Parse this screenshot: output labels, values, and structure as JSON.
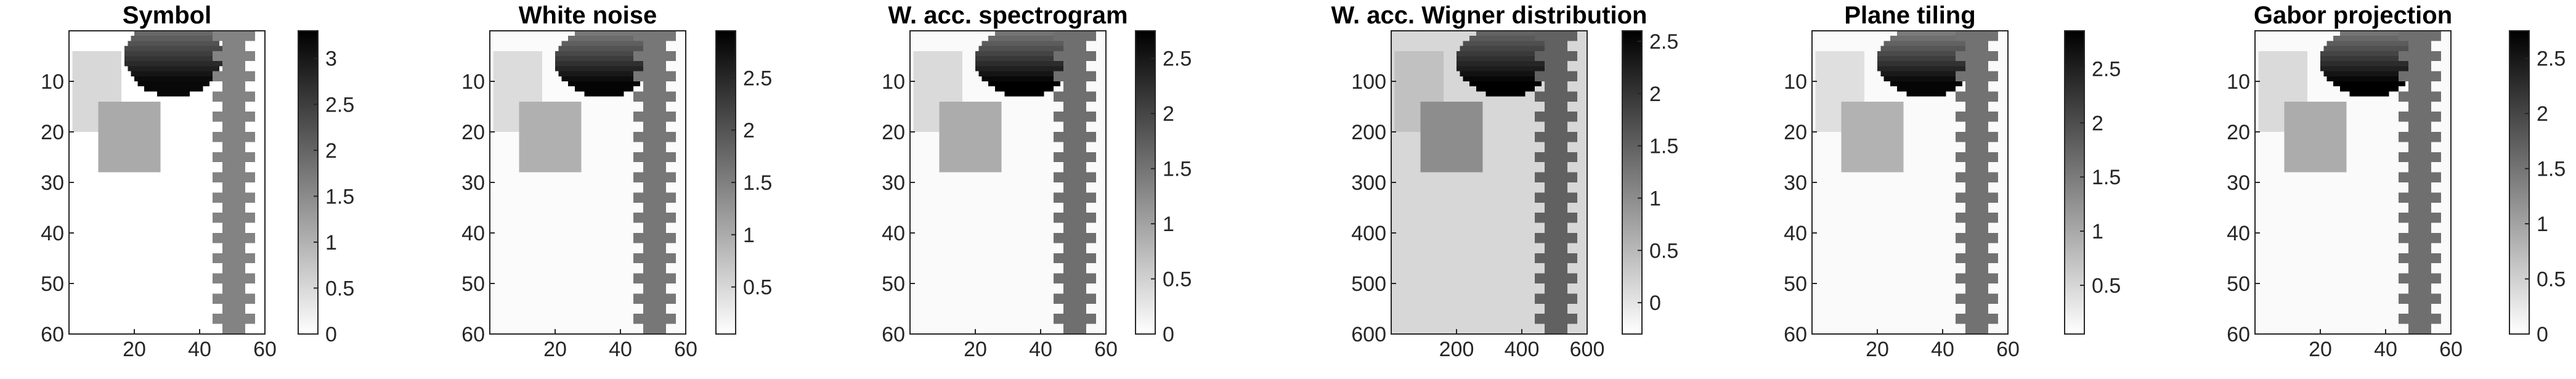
{
  "figure": {
    "background": "#ffffff",
    "axis_color": "#262626",
    "colormap": "gray-reversed"
  },
  "chart_data": [
    {
      "type": "heatmap",
      "title": "Symbol",
      "xlabel": "",
      "ylabel": "",
      "xlim": [
        0,
        60
      ],
      "ylim": [
        60,
        0
      ],
      "xticks": [
        "20",
        "40",
        "60"
      ],
      "yticks": [
        "10",
        "20",
        "30",
        "40",
        "50",
        "60"
      ],
      "grid": false,
      "colorbar": {
        "range": [
          0,
          3.3
        ],
        "ticks": [
          "0",
          "0.5",
          "1",
          "1.5",
          "2",
          "2.5",
          "3"
        ]
      },
      "features": {
        "background": 0,
        "ellipse": {
          "center": [
            32,
            5
          ],
          "radii": [
            15,
            8
          ],
          "max": 3.2,
          "min": 1.5
        },
        "square1": {
          "x": [
            1,
            16
          ],
          "y": [
            4,
            20
          ],
          "value": 0.5
        },
        "square2": {
          "x": [
            9,
            28
          ],
          "y": [
            14,
            28
          ],
          "value": 1.1
        },
        "strip": {
          "x": [
            47,
            54
          ],
          "teeth": 15,
          "value": 1.6
        }
      }
    },
    {
      "type": "heatmap",
      "title": "White noise",
      "xlabel": "",
      "ylabel": "",
      "xlim": [
        0,
        60
      ],
      "ylim": [
        60,
        0
      ],
      "xticks": [
        "20",
        "40",
        "60"
      ],
      "yticks": [
        "10",
        "20",
        "30",
        "40",
        "50",
        "60"
      ],
      "grid": false,
      "colorbar": {
        "range": [
          0.05,
          2.95
        ],
        "ticks": [
          "0.5",
          "1",
          "1.5",
          "2",
          "2.5"
        ]
      },
      "features": {
        "background": 0.1,
        "ellipse": {
          "center": [
            35,
            6
          ],
          "radii": [
            15,
            7
          ],
          "max": 2.9,
          "min": 1.4
        },
        "square1": {
          "x": [
            1,
            16
          ],
          "y": [
            4,
            20
          ],
          "value": 0.45
        },
        "square2": {
          "x": [
            9,
            28
          ],
          "y": [
            14,
            28
          ],
          "value": 0.95
        },
        "strip": {
          "x": [
            47,
            54
          ],
          "teeth": 15,
          "value": 1.6
        }
      }
    },
    {
      "type": "heatmap",
      "title": "W. acc. spectrogram",
      "xlabel": "",
      "ylabel": "",
      "xlim": [
        0,
        60
      ],
      "ylim": [
        60,
        0
      ],
      "xticks": [
        "20",
        "40",
        "60"
      ],
      "yticks": [
        "10",
        "20",
        "30",
        "40",
        "50",
        "60"
      ],
      "grid": false,
      "colorbar": {
        "range": [
          0,
          2.75
        ],
        "ticks": [
          "0",
          "0.5",
          "1",
          "1.5",
          "2",
          "2.5"
        ]
      },
      "features": {
        "background": 0.05,
        "ellipse": {
          "center": [
            35,
            6
          ],
          "radii": [
            15,
            7
          ],
          "max": 2.75,
          "min": 1.3
        },
        "square1": {
          "x": [
            1,
            16
          ],
          "y": [
            4,
            20
          ],
          "value": 0.4
        },
        "square2": {
          "x": [
            9,
            28
          ],
          "y": [
            14,
            28
          ],
          "value": 0.9
        },
        "strip": {
          "x": [
            47,
            54
          ],
          "teeth": 15,
          "value": 1.55
        }
      }
    },
    {
      "type": "heatmap",
      "title": "W. acc. Wigner distribution",
      "xlabel": "",
      "ylabel": "",
      "xlim": [
        0,
        600
      ],
      "ylim": [
        600,
        0
      ],
      "xticks": [
        "200",
        "400",
        "600"
      ],
      "yticks": [
        "100",
        "200",
        "300",
        "400",
        "500",
        "600"
      ],
      "grid": false,
      "colorbar": {
        "range": [
          -0.3,
          2.6
        ],
        "ticks": [
          "0",
          "0.5",
          "1",
          "1.5",
          "2",
          "2.5"
        ]
      },
      "features": {
        "background": 0.15,
        "ellipse": {
          "center": [
            350,
            60
          ],
          "radii": [
            150,
            70
          ],
          "max": 2.6,
          "min": 1.3
        },
        "square1": {
          "x": [
            10,
            160
          ],
          "y": [
            40,
            200
          ],
          "value": 0.4
        },
        "square2": {
          "x": [
            90,
            280
          ],
          "y": [
            140,
            280
          ],
          "value": 1.0
        },
        "strip": {
          "x": [
            470,
            540
          ],
          "teeth": 15,
          "value": 1.5
        }
      }
    },
    {
      "type": "heatmap",
      "title": "Plane tiling",
      "xlabel": "",
      "ylabel": "",
      "xlim": [
        0,
        60
      ],
      "ylim": [
        60,
        0
      ],
      "xticks": [
        "20",
        "40",
        "60"
      ],
      "yticks": [
        "10",
        "20",
        "30",
        "40",
        "50",
        "60"
      ],
      "grid": false,
      "colorbar": {
        "range": [
          0.05,
          2.85
        ],
        "ticks": [
          "0.5",
          "1",
          "1.5",
          "2",
          "2.5"
        ]
      },
      "features": {
        "background": 0.1,
        "ellipse": {
          "center": [
            35,
            6
          ],
          "radii": [
            15,
            7
          ],
          "max": 2.8,
          "min": 1.3
        },
        "square1": {
          "x": [
            1,
            16
          ],
          "y": [
            4,
            20
          ],
          "value": 0.4
        },
        "square2": {
          "x": [
            9,
            28
          ],
          "y": [
            14,
            28
          ],
          "value": 0.9
        },
        "strip": {
          "x": [
            47,
            54
          ],
          "teeth": 15,
          "value": 1.6
        }
      }
    },
    {
      "type": "heatmap",
      "title": "Gabor projection",
      "xlabel": "",
      "ylabel": "",
      "xlim": [
        0,
        60
      ],
      "ylim": [
        60,
        0
      ],
      "xticks": [
        "20",
        "40",
        "60"
      ],
      "yticks": [
        "10",
        "20",
        "30",
        "40",
        "50",
        "60"
      ],
      "grid": false,
      "colorbar": {
        "range": [
          0,
          2.75
        ],
        "ticks": [
          "0",
          "0.5",
          "1",
          "1.5",
          "2",
          "2.5"
        ]
      },
      "features": {
        "background": 0.05,
        "ellipse": {
          "center": [
            35,
            6
          ],
          "radii": [
            15,
            7
          ],
          "max": 2.75,
          "min": 1.3
        },
        "square1": {
          "x": [
            1,
            16
          ],
          "y": [
            4,
            20
          ],
          "value": 0.4
        },
        "square2": {
          "x": [
            9,
            28
          ],
          "y": [
            14,
            28
          ],
          "value": 0.9
        },
        "strip": {
          "x": [
            47,
            54
          ],
          "teeth": 15,
          "value": 1.55
        }
      }
    }
  ]
}
